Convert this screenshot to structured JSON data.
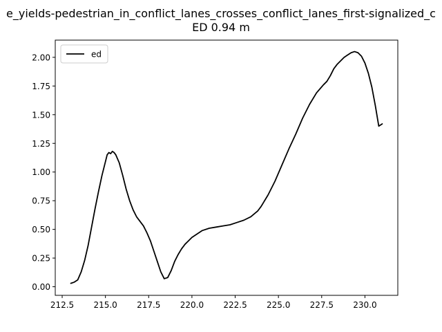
{
  "chart_data": {
    "type": "line",
    "title_lines": [
      "e_yields-pedestrian_in_conflict_lanes_crosses_conflict_lanes_first-signalized_c",
      "ED 0.94 m"
    ],
    "xlabel": "",
    "ylabel": "",
    "xlim": [
      212.1,
      231.9
    ],
    "ylim": [
      -0.075,
      2.15
    ],
    "xticks": [
      "212.5",
      "215.0",
      "217.5",
      "220.0",
      "222.5",
      "225.0",
      "227.5",
      "230.0"
    ],
    "yticks": [
      "0.00",
      "0.25",
      "0.50",
      "0.75",
      "1.00",
      "1.25",
      "1.50",
      "1.75",
      "2.00"
    ],
    "grid": false,
    "legend": {
      "position": "top-left",
      "entries": [
        "ed"
      ]
    },
    "series": [
      {
        "name": "ed",
        "color": "#000000",
        "x": [
          213.0,
          213.2,
          213.4,
          213.6,
          213.8,
          214.0,
          214.2,
          214.4,
          214.6,
          214.8,
          215.0,
          215.1,
          215.2,
          215.3,
          215.4,
          215.5,
          215.6,
          215.8,
          216.0,
          216.2,
          216.4,
          216.6,
          216.8,
          217.0,
          217.2,
          217.4,
          217.6,
          217.8,
          218.0,
          218.2,
          218.4,
          218.6,
          218.8,
          218.9,
          219.0,
          219.2,
          219.4,
          219.6,
          219.8,
          220.0,
          220.3,
          220.6,
          221.0,
          221.4,
          221.8,
          222.2,
          222.6,
          223.0,
          223.4,
          223.8,
          224.0,
          224.4,
          224.8,
          225.2,
          225.6,
          226.0,
          226.4,
          226.8,
          227.2,
          227.6,
          227.8,
          228.0,
          228.2,
          228.4,
          228.6,
          228.8,
          229.0,
          229.2,
          229.4,
          229.6,
          229.8,
          230.0,
          230.2,
          230.4,
          230.6,
          230.8,
          231.0
        ],
        "y": [
          0.03,
          0.04,
          0.06,
          0.13,
          0.23,
          0.36,
          0.52,
          0.68,
          0.83,
          0.97,
          1.09,
          1.15,
          1.17,
          1.16,
          1.18,
          1.17,
          1.15,
          1.08,
          0.97,
          0.85,
          0.75,
          0.67,
          0.61,
          0.57,
          0.53,
          0.47,
          0.4,
          0.31,
          0.22,
          0.13,
          0.07,
          0.08,
          0.14,
          0.18,
          0.22,
          0.28,
          0.33,
          0.37,
          0.4,
          0.43,
          0.46,
          0.49,
          0.51,
          0.52,
          0.53,
          0.54,
          0.56,
          0.58,
          0.61,
          0.66,
          0.7,
          0.8,
          0.92,
          1.06,
          1.2,
          1.33,
          1.47,
          1.59,
          1.69,
          1.76,
          1.79,
          1.84,
          1.9,
          1.94,
          1.97,
          2.0,
          2.02,
          2.04,
          2.05,
          2.04,
          2.01,
          1.95,
          1.86,
          1.74,
          1.58,
          1.4,
          1.42
        ]
      }
    ]
  }
}
